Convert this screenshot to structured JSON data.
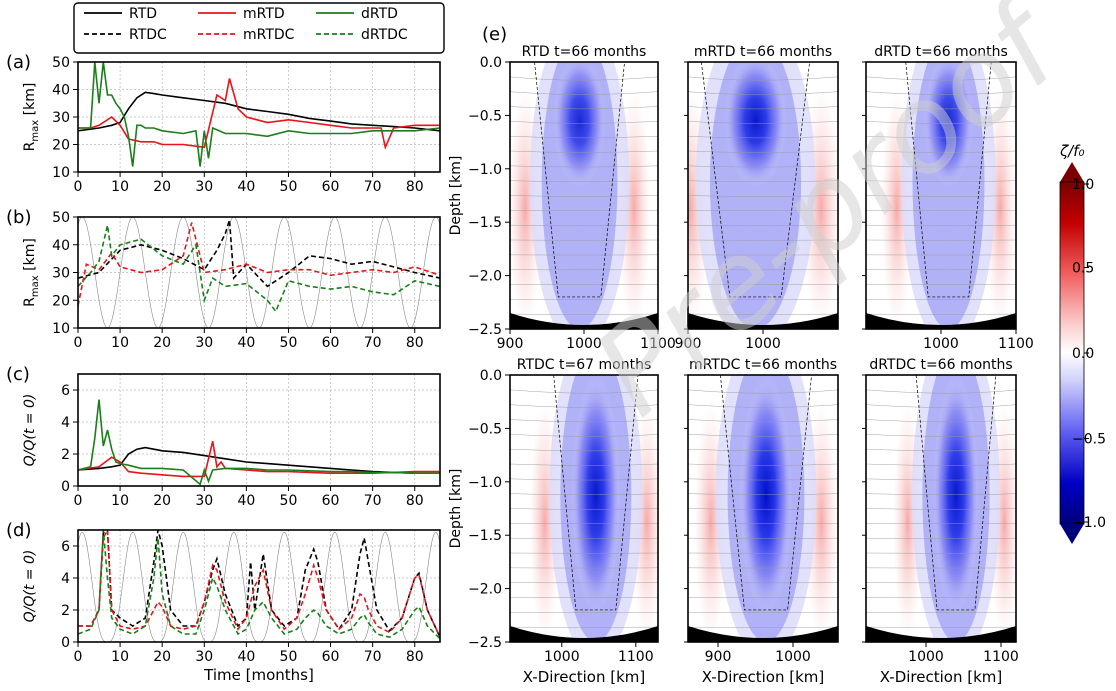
{
  "legend": {
    "entries": [
      {
        "label": "RTD",
        "color": "#000000",
        "dash": false
      },
      {
        "label": "RTDC",
        "color": "#000000",
        "dash": true
      },
      {
        "label": "mRTD",
        "color": "#e8141a",
        "dash": false
      },
      {
        "label": "mRTDC",
        "color": "#e8141a",
        "dash": true
      },
      {
        "label": "dRTD",
        "color": "#1a7f1a",
        "dash": false
      },
      {
        "label": "dRTDC",
        "color": "#1a7f1a",
        "dash": true
      }
    ]
  },
  "panel_letters": [
    "(a)",
    "(b)",
    "(c)",
    "(d)",
    "(e)"
  ],
  "watermark": "Pre-proof",
  "chart_data": [
    {
      "type": "line",
      "letter": "(a)",
      "ylabel": "R_max [km]",
      "xlabel": "",
      "xlim": [
        0,
        86
      ],
      "ylim": [
        10,
        50
      ],
      "grid": true,
      "xticks": [
        0,
        10,
        20,
        30,
        40,
        50,
        60,
        70,
        80
      ],
      "yticks": [
        10,
        20,
        30,
        40,
        50
      ],
      "series": [
        {
          "name": "RTD",
          "color": "#000000",
          "dash": false,
          "x": [
            0,
            5,
            8,
            10,
            12,
            14,
            16,
            18,
            20,
            25,
            30,
            35,
            40,
            45,
            50,
            55,
            60,
            65,
            70,
            75,
            80,
            86
          ],
          "y": [
            25,
            26,
            27,
            28,
            33,
            37,
            39,
            38.5,
            38,
            37,
            36,
            35,
            33,
            32,
            31,
            29.5,
            28.5,
            27.5,
            27,
            26.5,
            26,
            25
          ]
        },
        {
          "name": "mRTD",
          "color": "#e8141a",
          "dash": false,
          "x": [
            0,
            3,
            5,
            8,
            10,
            12,
            15,
            18,
            20,
            25,
            30,
            33,
            35,
            36,
            38,
            40,
            45,
            50,
            55,
            60,
            65,
            70,
            72,
            73,
            75,
            80,
            86
          ],
          "y": [
            26,
            26,
            27,
            30,
            27,
            22,
            21,
            21,
            20,
            20,
            19,
            38,
            36,
            44,
            33,
            30,
            28,
            29,
            28,
            27,
            26,
            26,
            26,
            19,
            26,
            27,
            27
          ]
        },
        {
          "name": "dRTD",
          "color": "#1a7f1a",
          "dash": false,
          "x": [
            0,
            3,
            4,
            5,
            6,
            7,
            8,
            9,
            10,
            11,
            12,
            13,
            14,
            15,
            16,
            18,
            20,
            25,
            28,
            29,
            30,
            31,
            32,
            35,
            40,
            45,
            50,
            55,
            60,
            65,
            70,
            75,
            80,
            86
          ],
          "y": [
            26,
            26,
            50,
            35,
            50,
            38,
            38,
            35,
            33,
            30,
            23,
            12,
            27,
            27,
            26,
            26,
            25,
            24,
            25,
            12,
            25,
            15,
            26,
            24,
            24,
            23,
            25,
            24,
            24,
            24,
            25,
            25,
            25,
            26
          ]
        }
      ]
    },
    {
      "type": "line",
      "letter": "(b)",
      "ylabel": "R_max [km]",
      "xlabel": "",
      "xlim": [
        0,
        86
      ],
      "ylim": [
        10,
        50
      ],
      "grid": true,
      "xticks": [
        0,
        10,
        20,
        30,
        40,
        50,
        60,
        70,
        80
      ],
      "yticks": [
        10,
        20,
        30,
        40,
        50
      ],
      "background_series": {
        "color": "#888888",
        "period_months": 12,
        "note": "seasonal forcing (thin grey)"
      },
      "series": [
        {
          "name": "RTDC",
          "color": "#000000",
          "dash": true,
          "x": [
            0,
            5,
            10,
            15,
            20,
            25,
            30,
            33,
            35,
            36,
            37,
            40,
            45,
            50,
            55,
            60,
            65,
            70,
            75,
            80,
            86
          ],
          "y": [
            28,
            30,
            38,
            40,
            38,
            35,
            31,
            38,
            44,
            49,
            28,
            33,
            25,
            30,
            36,
            35,
            33,
            34,
            32,
            30,
            28
          ]
        },
        {
          "name": "mRTDC",
          "color": "#e8141a",
          "dash": true,
          "x": [
            0,
            2,
            5,
            8,
            10,
            15,
            20,
            25,
            27,
            30,
            35,
            40,
            45,
            50,
            55,
            60,
            65,
            70,
            75,
            80,
            86
          ],
          "y": [
            18,
            33,
            31,
            37,
            32,
            30,
            31,
            36,
            48,
            30,
            31,
            33,
            30,
            31,
            31,
            29,
            30,
            31,
            30,
            32,
            29
          ]
        },
        {
          "name": "dRTDC",
          "color": "#1a7f1a",
          "dash": true,
          "x": [
            0,
            3,
            5,
            7,
            8,
            10,
            15,
            20,
            25,
            28,
            30,
            32,
            35,
            40,
            45,
            47,
            50,
            55,
            60,
            65,
            70,
            75,
            80,
            86
          ],
          "y": [
            25,
            30,
            34,
            47,
            36,
            40,
            42,
            36,
            33,
            40,
            20,
            28,
            25,
            26,
            20,
            16,
            27,
            25,
            24,
            25,
            23,
            22,
            27,
            25
          ]
        }
      ]
    },
    {
      "type": "line",
      "letter": "(c)",
      "ylabel": "Q/Q(t = 0)",
      "xlabel": "",
      "xlim": [
        0,
        86
      ],
      "ylim": [
        0,
        7
      ],
      "grid": true,
      "xticks": [
        0,
        10,
        20,
        30,
        40,
        50,
        60,
        70,
        80
      ],
      "yticks": [
        0,
        2,
        4,
        6
      ],
      "series": [
        {
          "name": "RTD",
          "color": "#000000",
          "dash": false,
          "x": [
            0,
            5,
            8,
            10,
            12,
            14,
            16,
            18,
            20,
            25,
            30,
            35,
            40,
            45,
            50,
            55,
            60,
            65,
            70,
            75,
            80,
            86
          ],
          "y": [
            1,
            1.1,
            1.2,
            1.3,
            2,
            2.3,
            2.4,
            2.3,
            2.2,
            2.1,
            1.9,
            1.7,
            1.5,
            1.4,
            1.3,
            1.2,
            1.1,
            1,
            0.9,
            0.85,
            0.8,
            0.8
          ]
        },
        {
          "name": "mRTD",
          "color": "#e8141a",
          "dash": false,
          "x": [
            0,
            5,
            8,
            10,
            12,
            15,
            20,
            25,
            30,
            32,
            33,
            34,
            35,
            40,
            45,
            50,
            55,
            60,
            65,
            70,
            75,
            80,
            86
          ],
          "y": [
            1,
            1.2,
            1.8,
            1.5,
            0.9,
            0.8,
            0.7,
            0.6,
            0.6,
            2.8,
            1.2,
            1.5,
            1.1,
            1,
            0.9,
            0.9,
            0.85,
            0.8,
            0.8,
            0.8,
            0.85,
            0.9,
            0.9
          ]
        },
        {
          "name": "dRTD",
          "color": "#1a7f1a",
          "dash": false,
          "x": [
            0,
            3,
            4,
            5,
            6,
            7,
            8,
            9,
            10,
            12,
            15,
            20,
            25,
            29,
            30,
            31,
            32,
            35,
            40,
            45,
            50,
            55,
            60,
            65,
            70,
            75,
            80,
            86
          ],
          "y": [
            1,
            1.2,
            3,
            5.4,
            2.5,
            3.5,
            2.3,
            1.5,
            1.4,
            1.3,
            1.1,
            1.1,
            1,
            0.1,
            1,
            0.3,
            1,
            1.1,
            1.1,
            1,
            1,
            0.95,
            0.9,
            0.9,
            0.85,
            0.85,
            0.8,
            0.8
          ]
        }
      ]
    },
    {
      "type": "line",
      "letter": "(d)",
      "ylabel": "Q/Q(t = 0)",
      "xlabel": "Time [months]",
      "xlim": [
        0,
        86
      ],
      "ylim": [
        0,
        7
      ],
      "grid": true,
      "xticks": [
        0,
        10,
        20,
        30,
        40,
        50,
        60,
        70,
        80
      ],
      "yticks": [
        0,
        2,
        4,
        6
      ],
      "background_series": {
        "color": "#888888",
        "period_months": 12,
        "note": "seasonal forcing (thin grey)"
      },
      "series": [
        {
          "name": "RTDC",
          "color": "#000000",
          "dash": true,
          "x": [
            0,
            3,
            5,
            6,
            7,
            8,
            10,
            13,
            16,
            18,
            19,
            20,
            22,
            25,
            28,
            30,
            32,
            33,
            35,
            38,
            40,
            41,
            42,
            44,
            46,
            49,
            52,
            54,
            56,
            57,
            59,
            62,
            65,
            67,
            68,
            69,
            71,
            74,
            77,
            80,
            81,
            83,
            86
          ],
          "y": [
            1,
            1,
            2,
            6.8,
            7,
            2,
            1.5,
            1,
            1.5,
            5,
            7,
            6,
            2,
            1,
            1,
            2.5,
            4.5,
            5.2,
            3,
            1,
            1.5,
            5,
            2,
            5.5,
            2,
            1,
            1.5,
            4.5,
            5.8,
            5,
            2,
            0.8,
            2,
            5.5,
            6.5,
            5,
            2,
            0.7,
            1.5,
            4,
            4.3,
            2,
            0.3
          ]
        },
        {
          "name": "mRTDC",
          "color": "#e8141a",
          "dash": true,
          "x": [
            0,
            3,
            5,
            6,
            7,
            8,
            10,
            13,
            16,
            18,
            19,
            20,
            22,
            25,
            28,
            30,
            32,
            33,
            35,
            38,
            40,
            42,
            44,
            46,
            49,
            52,
            54,
            56,
            57,
            59,
            62,
            65,
            67,
            68,
            69,
            71,
            74,
            77,
            80,
            81,
            83,
            86
          ],
          "y": [
            1,
            1,
            2,
            6.5,
            7,
            2,
            1,
            0.8,
            1,
            2,
            2.5,
            2.2,
            1,
            0.8,
            1,
            2.5,
            4.8,
            4.5,
            2.5,
            0.8,
            1.5,
            3.5,
            4.5,
            2,
            0.8,
            1.5,
            3,
            4.8,
            4,
            2,
            0.8,
            1.5,
            3,
            2.8,
            2,
            1,
            0.6,
            1.5,
            4,
            4.2,
            2,
            0.3
          ]
        },
        {
          "name": "dRTDC",
          "color": "#1a7f1a",
          "dash": true,
          "x": [
            0,
            3,
            5,
            6,
            7,
            8,
            10,
            13,
            16,
            18,
            19,
            20,
            22,
            25,
            28,
            30,
            32,
            33,
            35,
            38,
            40,
            42,
            44,
            46,
            49,
            52,
            54,
            56,
            57,
            59,
            62,
            65,
            67,
            68,
            69,
            71,
            74,
            77,
            80,
            81,
            83,
            86
          ],
          "y": [
            0.5,
            0.8,
            2,
            7,
            4,
            1.5,
            0.8,
            0.5,
            1,
            4,
            6.5,
            3,
            1,
            0.5,
            0.5,
            2,
            4,
            3.5,
            2,
            0.5,
            0.8,
            2,
            2.5,
            1.5,
            0.5,
            0.8,
            1.5,
            2,
            1.8,
            1,
            0.5,
            0.8,
            1.5,
            1.7,
            1.2,
            0.5,
            0.3,
            0.8,
            2,
            2.2,
            1,
            0.2
          ]
        }
      ]
    },
    {
      "type": "heatmap",
      "letter": "(e)",
      "colorbar": {
        "label": "ζ/f₀",
        "range": [
          -1,
          1
        ],
        "ticks": [
          "1.0",
          "0.5",
          "0.0",
          "−0.5",
          "−1.0"
        ]
      },
      "ylabel": "Depth [km]",
      "xlabel": "X-Direction [km]",
      "ylim": [
        -2.5,
        0.0
      ],
      "yticks": [
        "0.0",
        "−0.5",
        "−1.0",
        "−1.5",
        "−2.0",
        "−2.5"
      ],
      "panels": [
        {
          "title": "RTD t=66 months",
          "xlim": [
            900,
            1100
          ],
          "xticks": [
            "900",
            "1000",
            "1100"
          ],
          "core_x_frac": 0.47,
          "core_width": 0.32,
          "neg_strength": 0.85
        },
        {
          "title": "mRTD t=66 months",
          "xlim": [
            900,
            1100
          ],
          "xticks": [
            "900",
            "1000"
          ],
          "core_x_frac": 0.45,
          "core_width": 0.38,
          "neg_strength": 0.95
        },
        {
          "title": "dRTD t=66 months",
          "xlim": [
            900,
            1100
          ],
          "xticks": [
            "1000",
            "1100"
          ],
          "core_x_frac": 0.55,
          "core_width": 0.3,
          "neg_strength": 0.85
        },
        {
          "title": "RTDC t=67 months",
          "xlim": [
            930,
            1130
          ],
          "xticks": [
            "1000",
            "1100"
          ],
          "core_x_frac": 0.58,
          "core_width": 0.3,
          "neg_strength": 0.95
        },
        {
          "title": "mRTDC t=66 months",
          "xlim": [
            860,
            1060
          ],
          "xticks": [
            "900",
            "1000"
          ],
          "core_x_frac": 0.52,
          "core_width": 0.32,
          "neg_strength": 1.0
        },
        {
          "title": "dRTDC t=66 months",
          "xlim": [
            920,
            1120
          ],
          "xticks": [
            "1000",
            "1100"
          ],
          "core_x_frac": 0.6,
          "core_width": 0.28,
          "neg_strength": 0.95
        }
      ]
    }
  ]
}
